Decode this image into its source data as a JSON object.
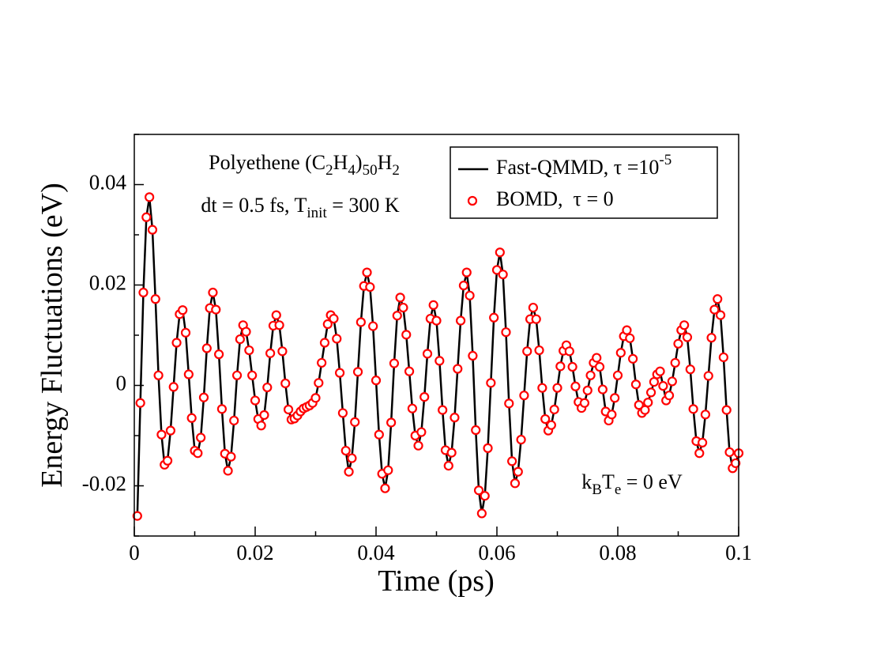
{
  "chart_data": {
    "type": "line",
    "xlabel": "Time (ps)",
    "ylabel": "Energy Fluctuations (eV)",
    "annotations": [
      {
        "segments": [
          {
            "text": "Polyethene (C"
          },
          {
            "text": "2",
            "shift": "sub"
          },
          {
            "text": "H"
          },
          {
            "text": "4",
            "shift": "sub"
          },
          {
            "text": ")"
          },
          {
            "text": "50",
            "shift": "sub"
          },
          {
            "text": "H"
          },
          {
            "text": "2",
            "shift": "sub"
          }
        ]
      },
      {
        "segments": [
          {
            "text": "dt = 0.5 fs, T"
          },
          {
            "text": "init",
            "shift": "sub"
          },
          {
            "text": " = 300 K"
          }
        ]
      },
      {
        "segments": [
          {
            "text": "k"
          },
          {
            "text": "B",
            "shift": "sub"
          },
          {
            "text": "T"
          },
          {
            "text": "e",
            "shift": "sub"
          },
          {
            "text": " = 0 eV"
          }
        ]
      }
    ],
    "xlim": [
      0,
      0.1
    ],
    "ylim": [
      -0.03,
      0.05
    ],
    "xticks": [
      0,
      0.02,
      0.04,
      0.06,
      0.08,
      0.1
    ],
    "yticks": [
      -0.02,
      0,
      0.02,
      0.04
    ],
    "xminorticks": [
      0.01,
      0.03,
      0.05,
      0.07,
      0.09
    ],
    "yminorticks": [
      -0.03,
      -0.01,
      0.01,
      0.03,
      0.05
    ],
    "grid": false,
    "legend": "upper right",
    "x": [
      0.0005,
      0.001,
      0.0015,
      0.002,
      0.0025,
      0.003,
      0.0035,
      0.004,
      0.0045,
      0.005,
      0.0055,
      0.006,
      0.0065,
      0.007,
      0.0075,
      0.008,
      0.0085,
      0.009,
      0.0095,
      0.01,
      0.0105,
      0.011,
      0.0115,
      0.012,
      0.0125,
      0.013,
      0.0135,
      0.014,
      0.0145,
      0.015,
      0.0155,
      0.016,
      0.0165,
      0.017,
      0.0175,
      0.018,
      0.0185,
      0.019,
      0.0195,
      0.02,
      0.0205,
      0.021,
      0.0215,
      0.022,
      0.0225,
      0.023,
      0.0235,
      0.024,
      0.0245,
      0.025,
      0.0255,
      0.026,
      0.0265,
      0.027,
      0.0275,
      0.028,
      0.0285,
      0.029,
      0.0295,
      0.03,
      0.0305,
      0.031,
      0.0315,
      0.032,
      0.0325,
      0.033,
      0.0335,
      0.034,
      0.0345,
      0.035,
      0.0355,
      0.036,
      0.0365,
      0.037,
      0.0375,
      0.038,
      0.0385,
      0.039,
      0.0395,
      0.04,
      0.0405,
      0.041,
      0.0415,
      0.042,
      0.0425,
      0.043,
      0.0435,
      0.044,
      0.0445,
      0.045,
      0.0455,
      0.046,
      0.0465,
      0.047,
      0.0475,
      0.048,
      0.0485,
      0.049,
      0.0495,
      0.05,
      0.0505,
      0.051,
      0.0515,
      0.052,
      0.0525,
      0.053,
      0.0535,
      0.054,
      0.0545,
      0.055,
      0.0555,
      0.056,
      0.0565,
      0.057,
      0.0575,
      0.058,
      0.0585,
      0.059,
      0.0595,
      0.06,
      0.0605,
      0.061,
      0.0615,
      0.062,
      0.0625,
      0.063,
      0.0635,
      0.064,
      0.0645,
      0.065,
      0.0655,
      0.066,
      0.0665,
      0.067,
      0.0675,
      0.068,
      0.0685,
      0.069,
      0.0695,
      0.07,
      0.0705,
      0.071,
      0.0715,
      0.072,
      0.0725,
      0.073,
      0.0735,
      0.074,
      0.0745,
      0.075,
      0.0755,
      0.076,
      0.0765,
      0.077,
      0.0775,
      0.078,
      0.0785,
      0.079,
      0.0795,
      0.08,
      0.0805,
      0.081,
      0.0815,
      0.082,
      0.0825,
      0.083,
      0.0835,
      0.084,
      0.0845,
      0.085,
      0.0855,
      0.086,
      0.0865,
      0.087,
      0.0875,
      0.088,
      0.0885,
      0.089,
      0.0895,
      0.09,
      0.0905,
      0.091,
      0.0915,
      0.092,
      0.0925,
      0.093,
      0.0935,
      0.094,
      0.0945,
      0.095,
      0.0955,
      0.096,
      0.0965,
      0.097,
      0.0975,
      0.098,
      0.0985,
      0.099,
      0.0995,
      0.1
    ],
    "series": [
      {
        "name": [
          {
            "text": "Fast-QMMD, τ =10"
          },
          {
            "text": "-5",
            "shift": "sup"
          }
        ],
        "color": "#000000",
        "style": "line",
        "values": [
          -0.026,
          -0.0035,
          0.0185,
          0.0335,
          0.0375,
          0.031,
          0.0172,
          0.002,
          -0.0098,
          -0.0158,
          -0.015,
          -0.009,
          -0.0003,
          0.0085,
          0.0142,
          0.015,
          0.0105,
          0.0022,
          -0.0065,
          -0.013,
          -0.0135,
          -0.0104,
          -0.0024,
          0.0074,
          0.0154,
          0.0185,
          0.0151,
          0.0062,
          -0.0047,
          -0.0136,
          -0.017,
          -0.0142,
          -0.007,
          0.002,
          0.0092,
          0.012,
          0.0107,
          0.007,
          0.002,
          -0.003,
          -0.0067,
          -0.008,
          -0.0059,
          -0.0004,
          0.0064,
          0.0119,
          0.014,
          0.012,
          0.0068,
          0.0004,
          -0.0048,
          -0.0068,
          -0.0066,
          -0.006,
          -0.0052,
          -0.0046,
          -0.0043,
          -0.004,
          -0.0035,
          -0.0025,
          0.0005,
          0.0045,
          0.0085,
          0.0122,
          0.014,
          0.0133,
          0.0093,
          0.0025,
          -0.0055,
          -0.013,
          -0.0172,
          -0.0145,
          -0.0073,
          0.0027,
          0.0126,
          0.0198,
          0.0225,
          0.0196,
          0.0118,
          0.001,
          -0.0098,
          -0.0176,
          -0.0205,
          -0.0169,
          -0.0074,
          0.0044,
          0.0139,
          0.0175,
          0.0155,
          0.0101,
          0.0028,
          -0.0046,
          -0.01,
          -0.012,
          -0.0093,
          -0.0023,
          0.0063,
          0.0133,
          0.016,
          0.0129,
          0.0049,
          -0.0049,
          -0.0129,
          -0.016,
          -0.0134,
          -0.0064,
          0.0033,
          0.0129,
          0.0199,
          0.0225,
          0.0179,
          0.0059,
          -0.0089,
          -0.0209,
          -0.0255,
          -0.022,
          -0.0125,
          0.0005,
          0.0135,
          0.023,
          0.0265,
          0.0221,
          0.0106,
          -0.0036,
          -0.0151,
          -0.0195,
          -0.0172,
          -0.0108,
          -0.002,
          0.0068,
          0.0132,
          0.0155,
          0.0132,
          0.007,
          -0.0005,
          -0.0067,
          -0.009,
          -0.0079,
          -0.0048,
          -0.0005,
          0.0038,
          0.0069,
          0.008,
          0.0068,
          0.0037,
          -0.0002,
          -0.0033,
          -0.0045,
          -0.0035,
          -0.001,
          0.002,
          0.0045,
          0.0055,
          0.0037,
          -0.0008,
          -0.0052,
          -0.007,
          -0.0058,
          -0.0025,
          0.002,
          0.0065,
          0.0098,
          0.011,
          0.0094,
          0.0053,
          0.0002,
          -0.0039,
          -0.0055,
          -0.0049,
          -0.0034,
          -0.0014,
          0.0007,
          0.0022,
          0.0028,
          -0.0001,
          -0.003,
          -0.002,
          0.0008,
          0.0045,
          0.0083,
          0.011,
          0.012,
          0.0096,
          0.0032,
          -0.0047,
          -0.0111,
          -0.0135,
          -0.0114,
          -0.0058,
          0.0019,
          0.0095,
          0.0151,
          0.0172,
          0.014,
          0.0056,
          -0.0049,
          -0.0133,
          -0.0165,
          -0.0155,
          -0.0135
        ]
      },
      {
        "name": [
          {
            "text": "BOMD,  τ = 0"
          }
        ],
        "color": "#ff0000",
        "style": "marker",
        "values": [
          -0.026,
          -0.0035,
          0.0185,
          0.0335,
          0.0375,
          0.031,
          0.0172,
          0.002,
          -0.0098,
          -0.0158,
          -0.015,
          -0.009,
          -0.0003,
          0.0085,
          0.0142,
          0.015,
          0.0105,
          0.0022,
          -0.0065,
          -0.013,
          -0.0135,
          -0.0104,
          -0.0024,
          0.0074,
          0.0154,
          0.0185,
          0.0151,
          0.0062,
          -0.0047,
          -0.0136,
          -0.017,
          -0.0142,
          -0.007,
          0.002,
          0.0092,
          0.012,
          0.0107,
          0.007,
          0.002,
          -0.003,
          -0.0067,
          -0.008,
          -0.0059,
          -0.0004,
          0.0064,
          0.0119,
          0.014,
          0.012,
          0.0068,
          0.0004,
          -0.0048,
          -0.0068,
          -0.0066,
          -0.006,
          -0.0052,
          -0.0046,
          -0.0043,
          -0.004,
          -0.0035,
          -0.0025,
          0.0005,
          0.0045,
          0.0085,
          0.0122,
          0.014,
          0.0133,
          0.0093,
          0.0025,
          -0.0055,
          -0.013,
          -0.0172,
          -0.0145,
          -0.0073,
          0.0027,
          0.0126,
          0.0198,
          0.0225,
          0.0196,
          0.0118,
          0.001,
          -0.0098,
          -0.0176,
          -0.0205,
          -0.0169,
          -0.0074,
          0.0044,
          0.0139,
          0.0175,
          0.0155,
          0.0101,
          0.0028,
          -0.0046,
          -0.01,
          -0.012,
          -0.0093,
          -0.0023,
          0.0063,
          0.0133,
          0.016,
          0.0129,
          0.0049,
          -0.0049,
          -0.0129,
          -0.016,
          -0.0134,
          -0.0064,
          0.0033,
          0.0129,
          0.0199,
          0.0225,
          0.0179,
          0.0059,
          -0.0089,
          -0.0209,
          -0.0255,
          -0.022,
          -0.0125,
          0.0005,
          0.0135,
          0.023,
          0.0265,
          0.0221,
          0.0106,
          -0.0036,
          -0.0151,
          -0.0195,
          -0.0172,
          -0.0108,
          -0.002,
          0.0068,
          0.0132,
          0.0155,
          0.0132,
          0.007,
          -0.0005,
          -0.0067,
          -0.009,
          -0.0079,
          -0.0048,
          -0.0005,
          0.0038,
          0.0069,
          0.008,
          0.0068,
          0.0037,
          -0.0002,
          -0.0033,
          -0.0045,
          -0.0035,
          -0.001,
          0.002,
          0.0045,
          0.0055,
          0.0037,
          -0.0008,
          -0.0052,
          -0.007,
          -0.0058,
          -0.0025,
          0.002,
          0.0065,
          0.0098,
          0.011,
          0.0094,
          0.0053,
          0.0002,
          -0.0039,
          -0.0055,
          -0.0049,
          -0.0034,
          -0.0014,
          0.0007,
          0.0022,
          0.0028,
          -0.0001,
          -0.003,
          -0.002,
          0.0008,
          0.0045,
          0.0083,
          0.011,
          0.012,
          0.0096,
          0.0032,
          -0.0047,
          -0.0111,
          -0.0135,
          -0.0114,
          -0.0058,
          0.0019,
          0.0095,
          0.0151,
          0.0172,
          0.014,
          0.0056,
          -0.0049,
          -0.0133,
          -0.0165,
          -0.0155,
          -0.0135
        ]
      }
    ]
  }
}
